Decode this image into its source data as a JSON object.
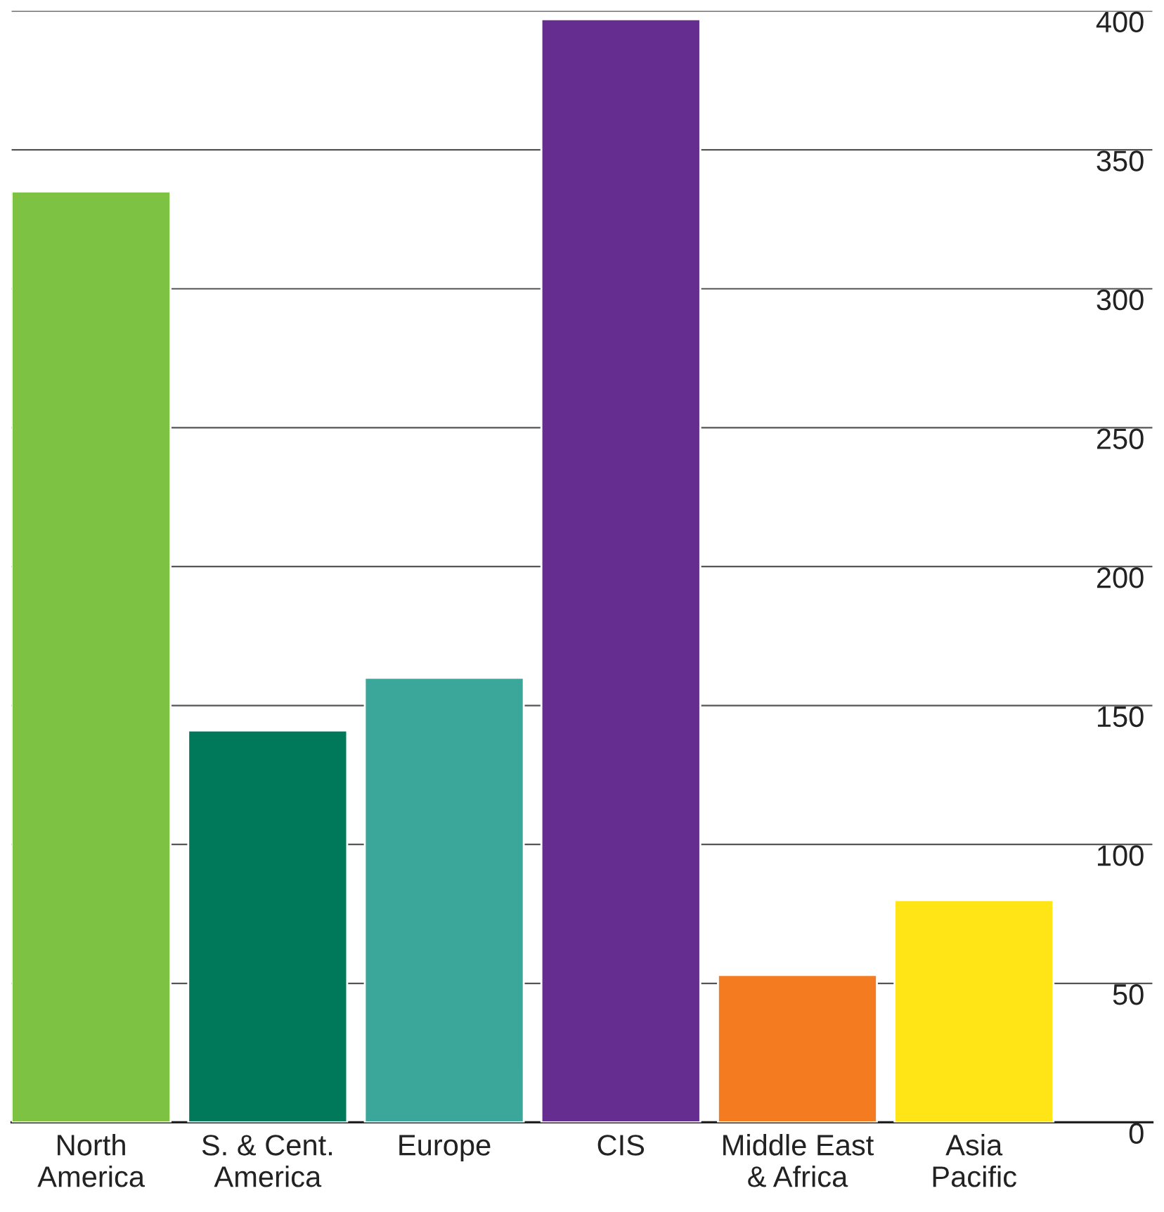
{
  "chart_data": {
    "type": "bar",
    "categories": [
      "North\nAmerica",
      "S. & Cent.\nAmerica",
      "Europe",
      "CIS",
      "Middle East\n& Africa",
      "Asia\nPacific"
    ],
    "values": [
      335,
      141,
      160,
      397,
      53,
      80
    ],
    "colors": [
      "#7dc242",
      "#00785a",
      "#3aa79a",
      "#652d8f",
      "#f47b20",
      "#ffe515"
    ],
    "ylim": [
      0,
      400
    ],
    "yticks": [
      0,
      50,
      100,
      150,
      200,
      250,
      300,
      350,
      400
    ],
    "grid": "y",
    "legend": false
  }
}
